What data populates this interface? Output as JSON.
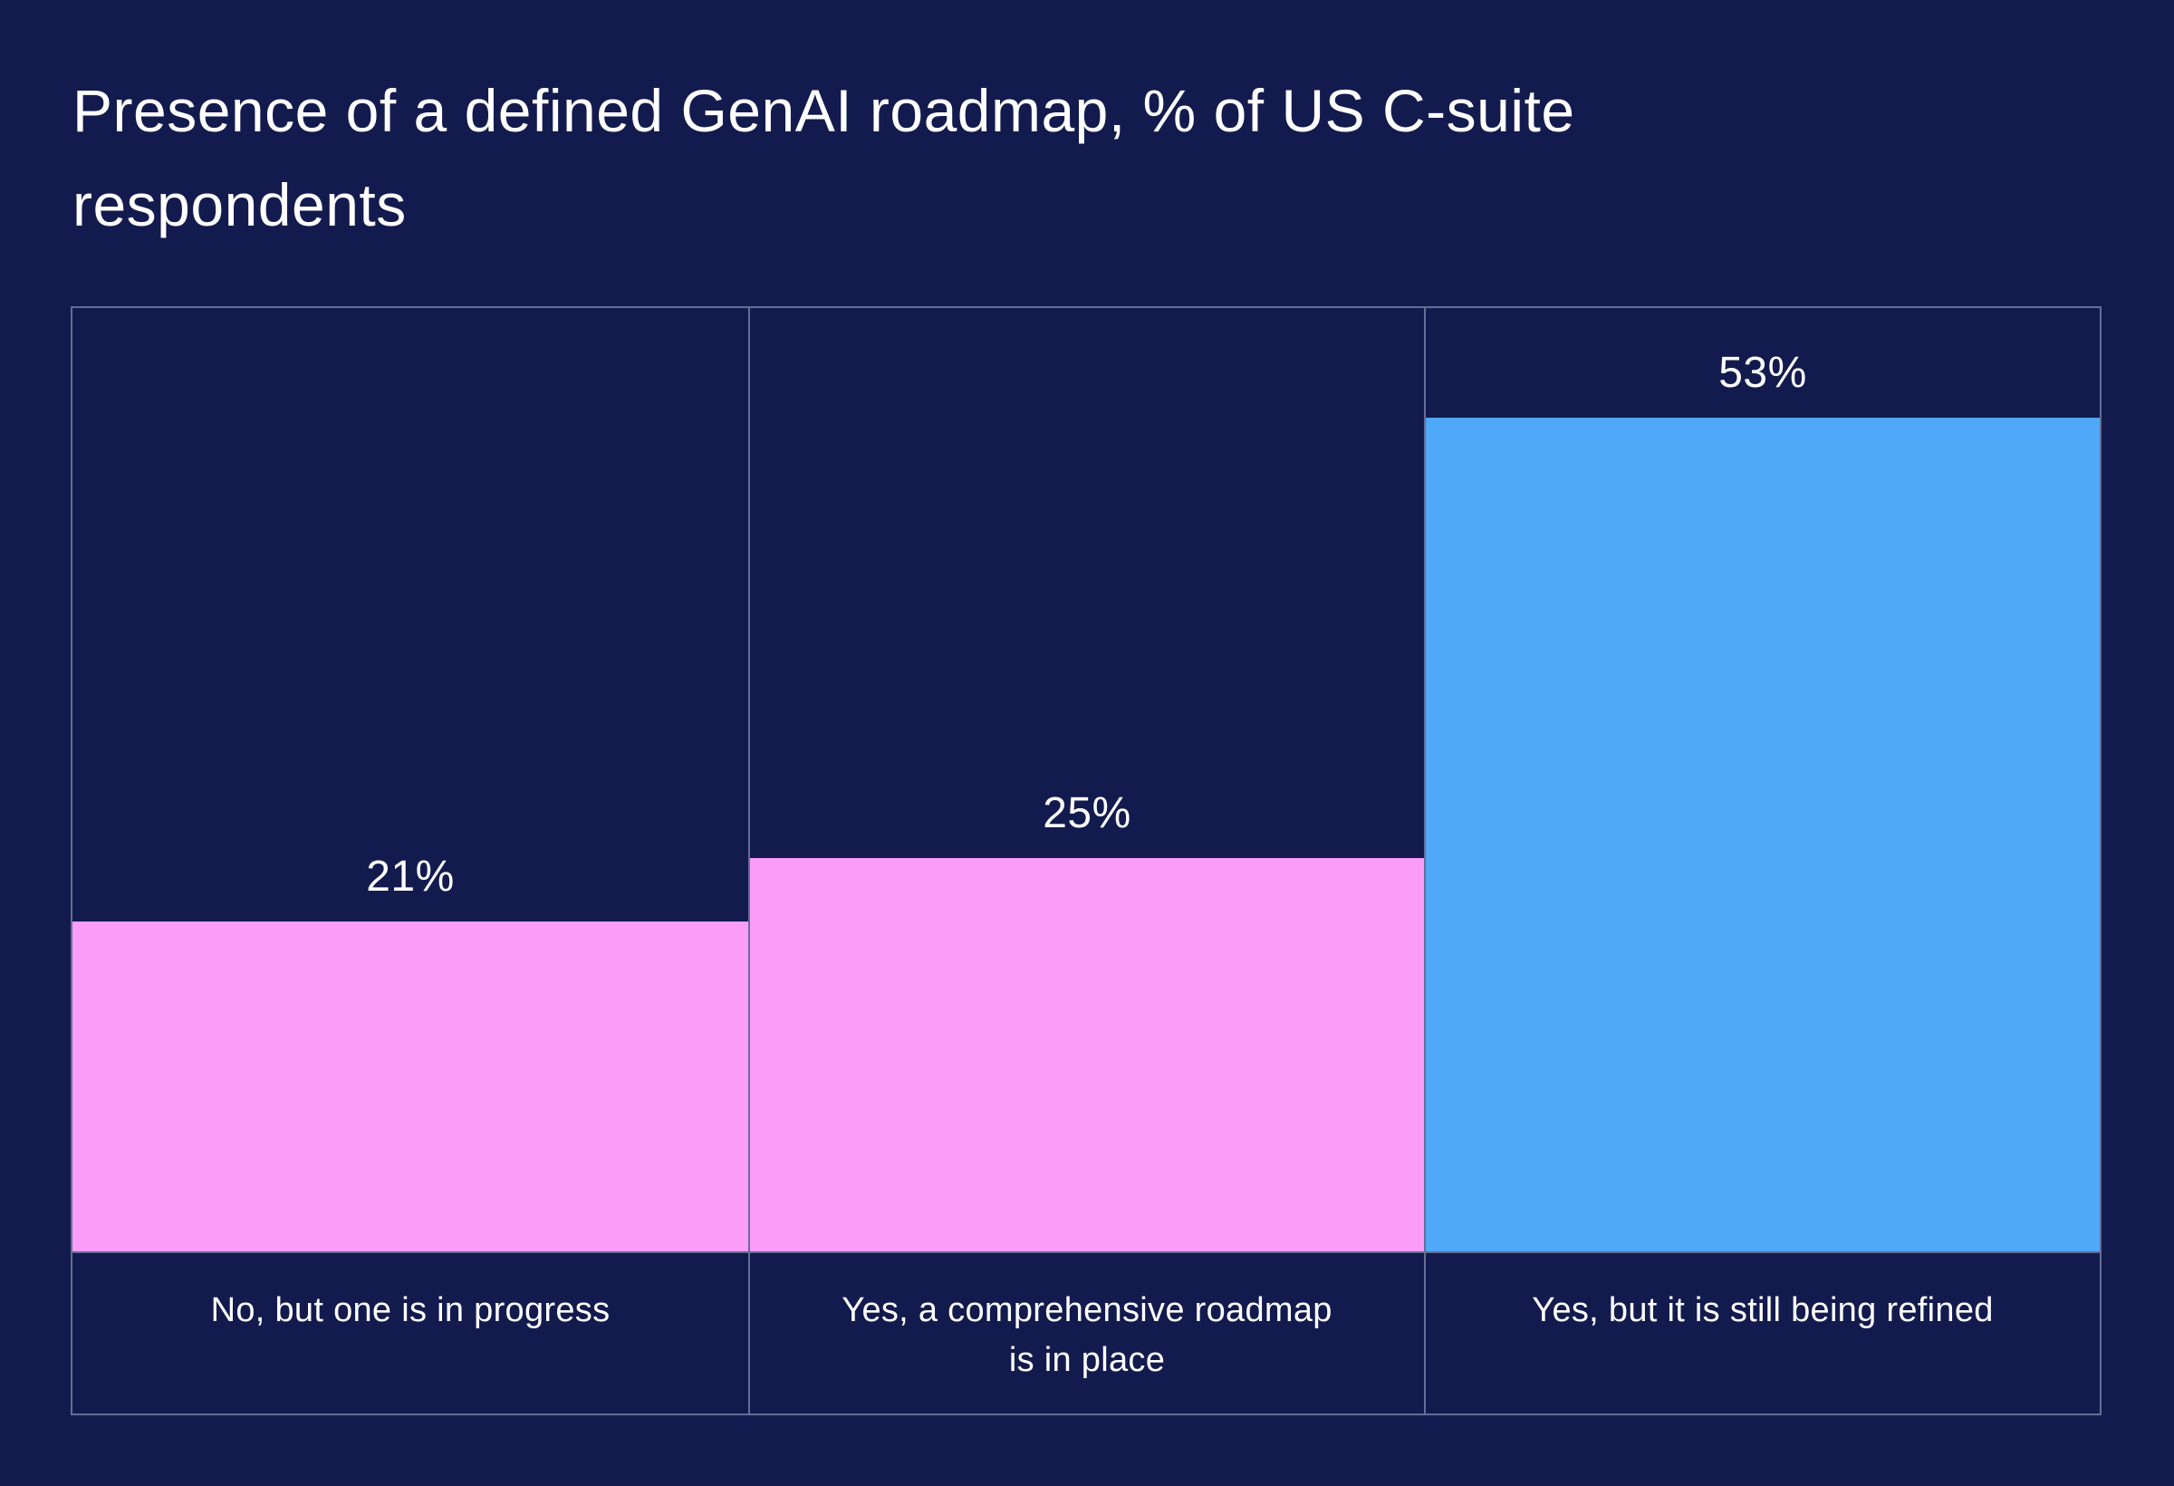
{
  "title": "Presence of a defined GenAI roadmap, % of US C-suite respondents",
  "chart_data": {
    "type": "bar",
    "title": "Presence of a defined GenAI roadmap, % of US C-suite respondents",
    "categories": [
      "No, but one is in progress",
      "Yes, a comprehensive roadmap is in place",
      "Yes, but it is still being refined"
    ],
    "category_lines": [
      [
        "No, but one is in progress"
      ],
      [
        "Yes, a comprehensive roadmap",
        "is in place"
      ],
      [
        "Yes, but it is still being refined"
      ]
    ],
    "values": [
      21,
      25,
      53
    ],
    "value_labels": [
      "21%",
      "25%",
      "53%"
    ],
    "bar_colors": [
      "#FB9CF8",
      "#FB9CF8",
      "#50A8F8"
    ],
    "ylim": [
      0,
      60
    ],
    "xlabel": "",
    "ylabel": "",
    "grid": false,
    "legend": false
  },
  "colors": {
    "background": "#131B4E",
    "pink": "#FB9CF8",
    "blue": "#50A8F8",
    "border_line": "#A8B2D0",
    "text": "#FFFFFF"
  }
}
